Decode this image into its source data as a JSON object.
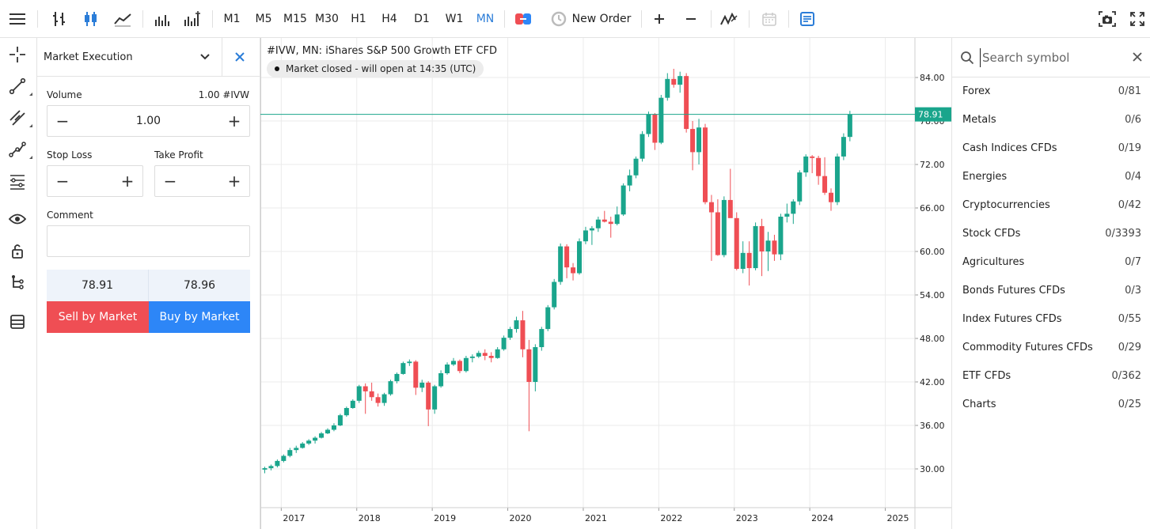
{
  "toolbar": {
    "timeframes": [
      {
        "label": "M1",
        "active": false
      },
      {
        "label": "M5",
        "active": false
      },
      {
        "label": "M15",
        "active": false
      },
      {
        "label": "M30",
        "active": false
      },
      {
        "label": "H1",
        "active": false
      },
      {
        "label": "H4",
        "active": false
      },
      {
        "label": "D1",
        "active": false
      },
      {
        "label": "W1",
        "active": false
      },
      {
        "label": "MN",
        "active": true
      }
    ],
    "new_order_label": "New Order",
    "accent_color": "#2b7dd8"
  },
  "sidebar": {
    "icons": [
      "crosshair-icon",
      "trend-line-icon",
      "channel-icon",
      "polyline-icon",
      "fibonacci-icon",
      "eye-icon",
      "lock-icon",
      "object-tree-icon",
      "layers-icon"
    ]
  },
  "order_panel": {
    "mode": "Market Execution",
    "volume_label": "Volume",
    "volume_hint": "1.00 #IVW",
    "volume_value": "1.00",
    "stop_loss_label": "Stop Loss",
    "take_profit_label": "Take Profit",
    "stop_loss_value": "",
    "take_profit_value": "",
    "comment_label": "Comment",
    "comment_value": "",
    "bid": "78.91",
    "ask": "78.96",
    "sell_label": "Sell by Market",
    "buy_label": "Buy by Market",
    "sell_color": "#ef4e54",
    "buy_color": "#2d86f7"
  },
  "chart": {
    "title": "#IVW, MN: iShares S&P 500 Growth ETF CFD",
    "status": "Market closed - will open at 14:35 (UTC)",
    "last_price_label": "78.91",
    "up_color": "#1aa58c",
    "down_color": "#ef4e54"
  },
  "chart_data": {
    "type": "candlestick",
    "title": "#IVW, MN: iShares S&P 500 Growth ETF CFD",
    "x_ticks": [
      "2017",
      "2018",
      "2019",
      "2020",
      "2021",
      "2022",
      "2023",
      "2024",
      "2025"
    ],
    "y_ticks": [
      "30.00",
      "36.00",
      "42.00",
      "48.00",
      "54.00",
      "60.00",
      "66.00",
      "72.00",
      "78.00",
      "84.00"
    ],
    "ylim": [
      24.0,
      88.0
    ],
    "last_price": 78.91,
    "grid": true,
    "start": "2016-10",
    "ohlc": [
      [
        29.9,
        30.3,
        29.4,
        30.1
      ],
      [
        30.1,
        30.6,
        29.8,
        30.4
      ],
      [
        30.4,
        31.3,
        30.2,
        31.1
      ],
      [
        31.1,
        32.0,
        30.9,
        31.8
      ],
      [
        31.8,
        32.9,
        31.6,
        32.6
      ],
      [
        32.6,
        33.2,
        32.2,
        32.9
      ],
      [
        32.9,
        33.7,
        32.8,
        33.5
      ],
      [
        33.5,
        34.1,
        33.3,
        33.9
      ],
      [
        33.9,
        34.5,
        33.5,
        34.3
      ],
      [
        34.3,
        35.1,
        34.2,
        34.9
      ],
      [
        34.9,
        35.6,
        34.8,
        35.4
      ],
      [
        35.4,
        36.3,
        35.2,
        36.0
      ],
      [
        36.0,
        37.6,
        35.9,
        37.4
      ],
      [
        37.4,
        38.6,
        37.2,
        38.4
      ],
      [
        38.4,
        39.6,
        38.3,
        39.4
      ],
      [
        39.4,
        41.6,
        39.1,
        41.4
      ],
      [
        41.4,
        41.8,
        37.6,
        40.7
      ],
      [
        40.7,
        41.9,
        39.4,
        39.9
      ],
      [
        39.9,
        40.4,
        38.6,
        39.1
      ],
      [
        39.1,
        40.5,
        38.7,
        40.3
      ],
      [
        40.3,
        42.3,
        40.1,
        42.1
      ],
      [
        42.1,
        43.3,
        41.8,
        43.1
      ],
      [
        43.1,
        44.8,
        43.0,
        44.6
      ],
      [
        44.6,
        45.1,
        44.2,
        44.8
      ],
      [
        44.8,
        45.0,
        40.2,
        41.2
      ],
      [
        41.2,
        42.3,
        40.6,
        41.9
      ],
      [
        41.9,
        42.1,
        35.9,
        38.2
      ],
      [
        38.2,
        41.6,
        37.6,
        41.4
      ],
      [
        41.4,
        43.6,
        41.2,
        43.2
      ],
      [
        43.2,
        44.7,
        43.0,
        44.4
      ],
      [
        44.4,
        45.3,
        44.2,
        44.9
      ],
      [
        44.9,
        45.1,
        43.2,
        43.5
      ],
      [
        43.5,
        45.6,
        43.3,
        45.3
      ],
      [
        45.3,
        45.8,
        44.7,
        45.5
      ],
      [
        45.5,
        46.3,
        45.3,
        46.0
      ],
      [
        46.0,
        46.5,
        45.0,
        45.6
      ],
      [
        45.6,
        46.1,
        44.7,
        45.3
      ],
      [
        45.3,
        46.8,
        45.2,
        46.5
      ],
      [
        46.5,
        48.4,
        46.3,
        48.1
      ],
      [
        48.1,
        49.6,
        47.8,
        49.3
      ],
      [
        49.3,
        51.0,
        48.8,
        50.5
      ],
      [
        50.5,
        51.8,
        45.4,
        46.5
      ],
      [
        46.5,
        47.8,
        35.2,
        42.0
      ],
      [
        42.0,
        47.2,
        40.7,
        46.8
      ],
      [
        46.8,
        49.6,
        46.3,
        49.3
      ],
      [
        49.3,
        52.6,
        49.0,
        52.3
      ],
      [
        52.3,
        56.2,
        52.0,
        55.8
      ],
      [
        55.8,
        61.1,
        55.4,
        60.7
      ],
      [
        60.7,
        61.0,
        56.3,
        57.8
      ],
      [
        57.8,
        58.4,
        56.0,
        57.0
      ],
      [
        57.0,
        61.8,
        56.8,
        61.4
      ],
      [
        61.4,
        63.4,
        61.0,
        62.9
      ],
      [
        62.9,
        63.5,
        60.9,
        63.2
      ],
      [
        63.2,
        64.8,
        62.7,
        64.4
      ],
      [
        64.4,
        65.6,
        64.0,
        64.1
      ],
      [
        64.1,
        64.8,
        61.9,
        63.8
      ],
      [
        63.8,
        66.2,
        63.6,
        65.1
      ],
      [
        65.1,
        69.4,
        64.9,
        69.1
      ],
      [
        69.1,
        71.3,
        68.3,
        70.5
      ],
      [
        70.5,
        73.1,
        70.1,
        72.8
      ],
      [
        72.8,
        76.6,
        72.4,
        76.2
      ],
      [
        76.2,
        79.3,
        75.8,
        78.9
      ],
      [
        78.9,
        79.1,
        74.0,
        75.0
      ],
      [
        75.0,
        81.6,
        74.8,
        81.2
      ],
      [
        81.2,
        84.6,
        80.8,
        83.8
      ],
      [
        83.8,
        85.2,
        82.6,
        83.0
      ],
      [
        83.0,
        84.8,
        81.9,
        84.2
      ],
      [
        84.2,
        84.6,
        76.4,
        76.9
      ],
      [
        76.9,
        78.0,
        71.2,
        73.7
      ],
      [
        73.7,
        78.3,
        72.0,
        77.1
      ],
      [
        77.1,
        77.6,
        66.5,
        66.8
      ],
      [
        66.8,
        67.8,
        58.7,
        65.4
      ],
      [
        65.4,
        67.2,
        59.4,
        59.5
      ],
      [
        59.5,
        67.6,
        59.2,
        67.1
      ],
      [
        67.1,
        71.4,
        64.9,
        64.6
      ],
      [
        64.6,
        65.4,
        57.4,
        57.6
      ],
      [
        57.6,
        61.4,
        57.0,
        59.8
      ],
      [
        59.8,
        61.4,
        55.3,
        57.7
      ],
      [
        57.7,
        64.0,
        57.4,
        63.5
      ],
      [
        63.5,
        64.5,
        56.6,
        60.0
      ],
      [
        60.0,
        62.7,
        57.3,
        61.5
      ],
      [
        61.5,
        62.3,
        58.7,
        59.6
      ],
      [
        59.6,
        65.2,
        58.8,
        64.8
      ],
      [
        64.8,
        66.6,
        64.0,
        65.2
      ],
      [
        65.2,
        67.2,
        63.8,
        66.9
      ],
      [
        66.9,
        71.2,
        66.4,
        70.9
      ],
      [
        70.9,
        73.4,
        70.3,
        73.1
      ],
      [
        73.1,
        73.3,
        70.8,
        72.9
      ],
      [
        72.9,
        73.2,
        69.2,
        70.4
      ],
      [
        70.4,
        73.0,
        67.8,
        68.1
      ],
      [
        68.1,
        68.7,
        65.6,
        66.8
      ],
      [
        66.8,
        73.5,
        66.4,
        73.1
      ],
      [
        73.1,
        76.3,
        72.6,
        75.8
      ],
      [
        75.8,
        79.4,
        75.2,
        78.91
      ]
    ]
  },
  "symbols": {
    "search_placeholder": "Search symbol",
    "categories": [
      {
        "name": "Forex",
        "count": "0/81"
      },
      {
        "name": "Metals",
        "count": "0/6"
      },
      {
        "name": "Cash Indices CFDs",
        "count": "0/19"
      },
      {
        "name": "Energies",
        "count": "0/4"
      },
      {
        "name": "Cryptocurrencies",
        "count": "0/42"
      },
      {
        "name": "Stock CFDs",
        "count": "0/3393"
      },
      {
        "name": "Agricultures",
        "count": "0/7"
      },
      {
        "name": "Bonds Futures CFDs",
        "count": "0/3"
      },
      {
        "name": "Index Futures CFDs",
        "count": "0/55"
      },
      {
        "name": "Commodity Futures CFDs",
        "count": "0/29"
      },
      {
        "name": "ETF CFDs",
        "count": "0/362"
      },
      {
        "name": "Charts",
        "count": "0/25"
      }
    ]
  }
}
